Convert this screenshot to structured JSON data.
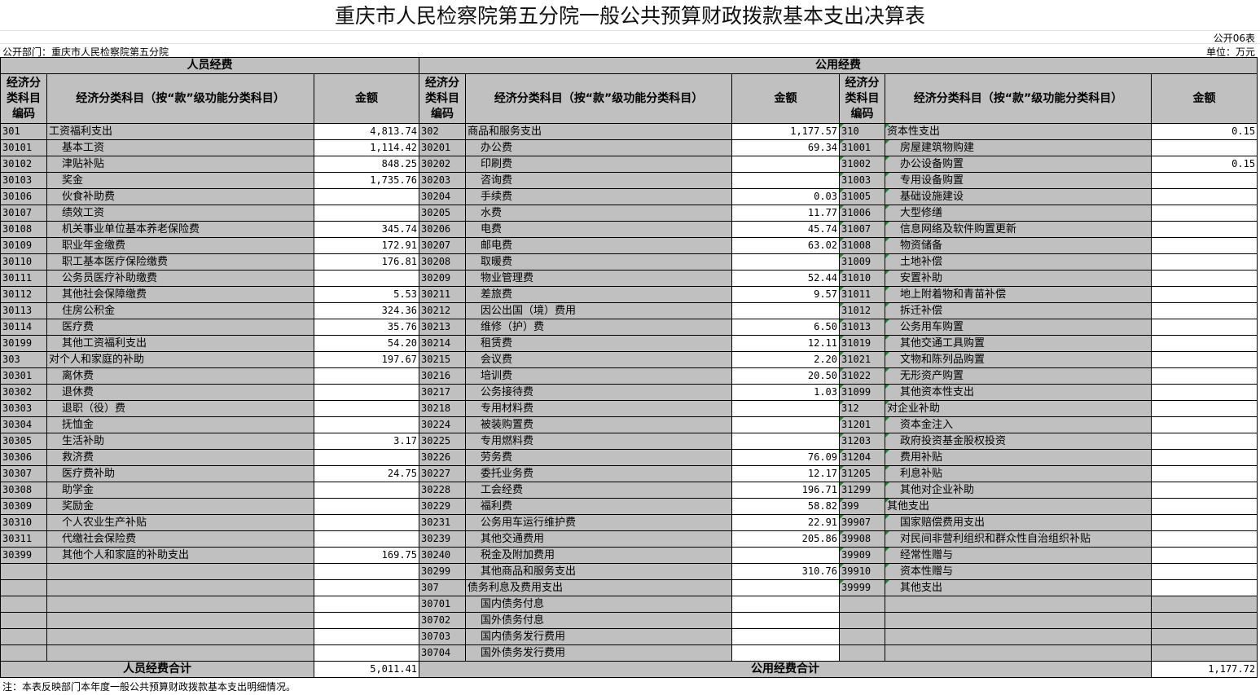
{
  "title": "重庆市人民检察院第五分院一般公共预算财政拨款基本支出决算表",
  "table_no": "公开06表",
  "department": "公开部门：重庆市人民检察院第五分院",
  "unit": "单位：万元",
  "sections": {
    "personnel": "人员经费",
    "public": "公用经费"
  },
  "headers": {
    "code": "经济分类科目编码",
    "name": "经济分类科目（按“款”级功能分类科目）",
    "amount": "金额"
  },
  "personnel_rows": [
    [
      "301",
      "工资福利支出",
      "4,813.74"
    ],
    [
      "30101",
      "基本工资",
      "1,114.42"
    ],
    [
      "30102",
      "津贴补贴",
      "848.25"
    ],
    [
      "30103",
      "奖金",
      "1,735.76"
    ],
    [
      "30106",
      "伙食补助费",
      ""
    ],
    [
      "30107",
      "绩效工资",
      ""
    ],
    [
      "30108",
      "机关事业单位基本养老保险费",
      "345.74"
    ],
    [
      "30109",
      "职业年金缴费",
      "172.91"
    ],
    [
      "30110",
      "职工基本医疗保险缴费",
      "176.81"
    ],
    [
      "30111",
      "公务员医疗补助缴费",
      ""
    ],
    [
      "30112",
      "其他社会保障缴费",
      "5.53"
    ],
    [
      "30113",
      "住房公积金",
      "324.36"
    ],
    [
      "30114",
      "医疗费",
      "35.76"
    ],
    [
      "30199",
      "其他工资福利支出",
      "54.20"
    ],
    [
      "303",
      "对个人和家庭的补助",
      "197.67"
    ],
    [
      "30301",
      "离休费",
      ""
    ],
    [
      "30302",
      "退休费",
      ""
    ],
    [
      "30303",
      "退职（役）费",
      ""
    ],
    [
      "30304",
      "抚恤金",
      ""
    ],
    [
      "30305",
      "生活补助",
      "3.17"
    ],
    [
      "30306",
      "救济费",
      ""
    ],
    [
      "30307",
      "医疗费补助",
      "24.75"
    ],
    [
      "30308",
      "助学金",
      ""
    ],
    [
      "30309",
      "奖励金",
      ""
    ],
    [
      "30310",
      "个人农业生产补贴",
      ""
    ],
    [
      "30311",
      "代缴社会保险费",
      ""
    ],
    [
      "30399",
      "其他个人和家庭的补助支出",
      "169.75"
    ]
  ],
  "public_rows_a": [
    [
      "302",
      "商品和服务支出",
      "1,177.57"
    ],
    [
      "30201",
      "办公费",
      "69.34"
    ],
    [
      "30202",
      "印刷费",
      ""
    ],
    [
      "30203",
      "咨询费",
      ""
    ],
    [
      "30204",
      "手续费",
      "0.03"
    ],
    [
      "30205",
      "水费",
      "11.77"
    ],
    [
      "30206",
      "电费",
      "45.74"
    ],
    [
      "30207",
      "邮电费",
      "63.02"
    ],
    [
      "30208",
      "取暖费",
      ""
    ],
    [
      "30209",
      "物业管理费",
      "52.44"
    ],
    [
      "30211",
      "差旅费",
      "9.57"
    ],
    [
      "30212",
      "因公出国（境）费用",
      ""
    ],
    [
      "30213",
      "维修（护）费",
      "6.50"
    ],
    [
      "30214",
      "租赁费",
      "12.11"
    ],
    [
      "30215",
      "会议费",
      "2.20"
    ],
    [
      "30216",
      "培训费",
      "20.50"
    ],
    [
      "30217",
      "公务接待费",
      "1.03"
    ],
    [
      "30218",
      "专用材料费",
      ""
    ],
    [
      "30224",
      "被装购置费",
      ""
    ],
    [
      "30225",
      "专用燃料费",
      ""
    ],
    [
      "30226",
      "劳务费",
      "76.09"
    ],
    [
      "30227",
      "委托业务费",
      "12.17"
    ],
    [
      "30228",
      "工会经费",
      "196.71"
    ],
    [
      "30229",
      "福利费",
      "58.82"
    ],
    [
      "30231",
      "公务用车运行维护费",
      "22.91"
    ],
    [
      "30239",
      "其他交通费用",
      "205.86"
    ],
    [
      "30240",
      "税金及附加费用",
      ""
    ],
    [
      "30299",
      "其他商品和服务支出",
      "310.76"
    ],
    [
      "307",
      "债务利息及费用支出",
      ""
    ],
    [
      "30701",
      "国内债务付息",
      ""
    ],
    [
      "30702",
      "国外债务付息",
      ""
    ],
    [
      "30703",
      "国内债务发行费用",
      ""
    ],
    [
      "30704",
      "国外债务发行费用",
      ""
    ]
  ],
  "public_rows_b": [
    [
      "310",
      "资本性支出",
      "0.15"
    ],
    [
      "31001",
      "房屋建筑物购建",
      ""
    ],
    [
      "31002",
      "办公设备购置",
      "0.15"
    ],
    [
      "31003",
      "专用设备购置",
      ""
    ],
    [
      "31005",
      "基础设施建设",
      ""
    ],
    [
      "31006",
      "大型修缮",
      ""
    ],
    [
      "31007",
      "信息网络及软件购置更新",
      ""
    ],
    [
      "31008",
      "物资储备",
      ""
    ],
    [
      "31009",
      "土地补偿",
      ""
    ],
    [
      "31010",
      "安置补助",
      ""
    ],
    [
      "31011",
      "地上附着物和青苗补偿",
      ""
    ],
    [
      "31012",
      "拆迁补偿",
      ""
    ],
    [
      "31013",
      "公务用车购置",
      ""
    ],
    [
      "31019",
      "其他交通工具购置",
      ""
    ],
    [
      "31021",
      "文物和陈列品购置",
      ""
    ],
    [
      "31022",
      "无形资产购置",
      ""
    ],
    [
      "31099",
      "其他资本性支出",
      ""
    ],
    [
      "312",
      "对企业补助",
      ""
    ],
    [
      "31201",
      "资本金注入",
      ""
    ],
    [
      "31203",
      "政府投资基金股权投资",
      ""
    ],
    [
      "31204",
      "费用补贴",
      ""
    ],
    [
      "31205",
      "利息补贴",
      ""
    ],
    [
      "31299",
      "其他对企业补助",
      ""
    ],
    [
      "399",
      "其他支出",
      ""
    ],
    [
      "39907",
      "国家赔偿费用支出",
      ""
    ],
    [
      "39908",
      "对民间非营利组织和群众性自治组织补贴",
      ""
    ],
    [
      "39909",
      "经常性赠与",
      ""
    ],
    [
      "39910",
      "资本性赠与",
      ""
    ],
    [
      "39999",
      "其他支出",
      ""
    ]
  ],
  "totals": {
    "personnel_label": "人员经费合计",
    "personnel_value": "5,011.41",
    "public_label": "公用经费合计",
    "public_value": "1,177.72"
  },
  "note": "注：本表反映部门本年度一般公共预算财政拨款基本支出明细情况。",
  "colors": {
    "cell_bg": "#c0c0c0",
    "amount_bg": "#ffffff",
    "marker": "#1a8a2a"
  }
}
